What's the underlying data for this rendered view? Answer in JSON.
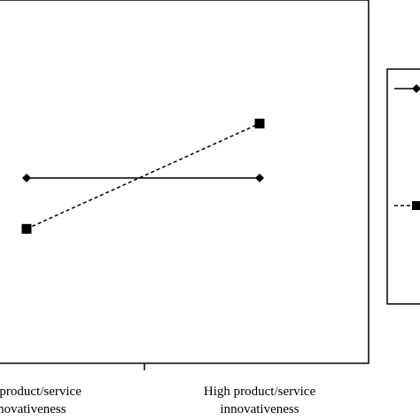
{
  "chart_data": {
    "type": "line",
    "title": "",
    "xlabel": "",
    "ylabel": "",
    "categories": [
      [
        "Low product/service",
        "innovativeness"
      ],
      [
        "High product/service",
        "innovativeness"
      ]
    ],
    "ylim": [
      0,
      10
    ],
    "grid": false,
    "legend_position": "right",
    "series": [
      {
        "marker": "diamond",
        "line_style": "solid",
        "values": [
          5.1,
          5.1
        ]
      },
      {
        "marker": "square",
        "line_style": "dashed",
        "values": [
          3.7,
          6.6
        ]
      }
    ]
  }
}
